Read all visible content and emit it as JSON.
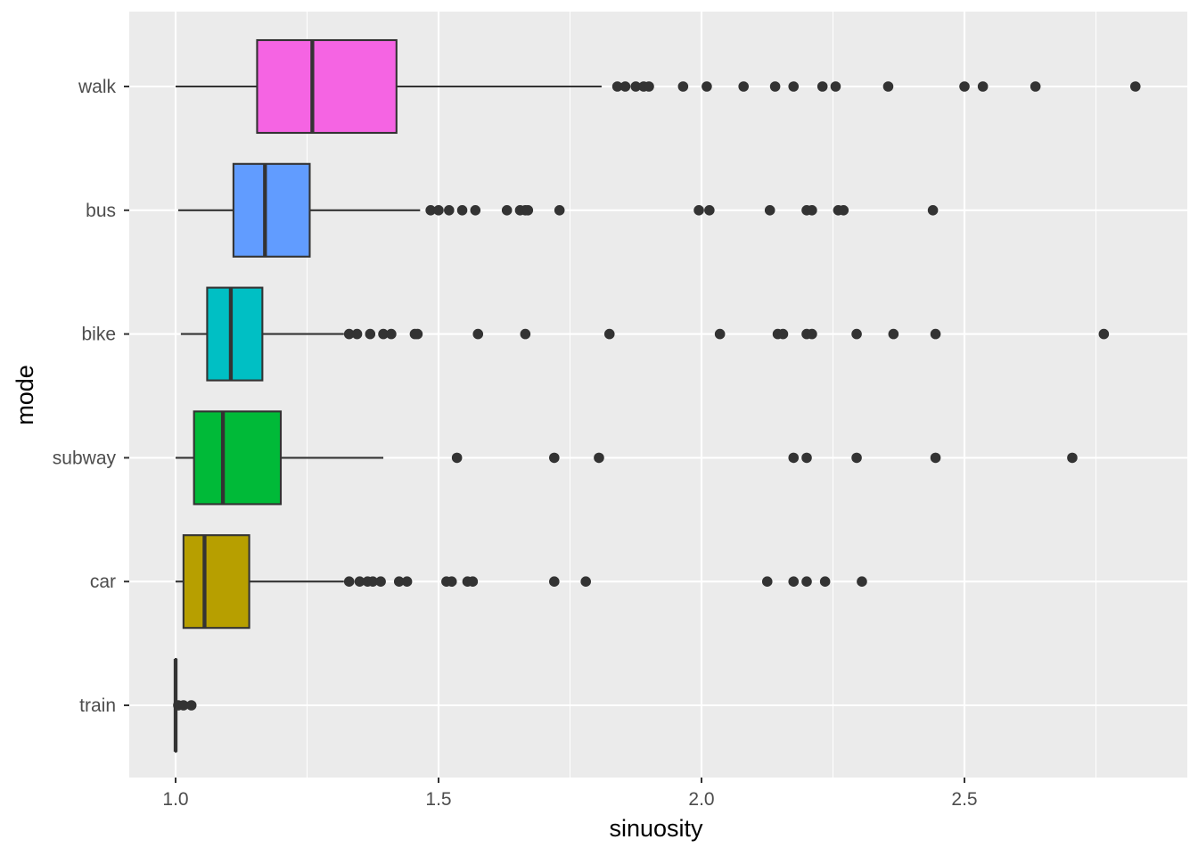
{
  "chart_data": {
    "type": "boxplot",
    "orientation": "horizontal",
    "xlabel": "sinuosity",
    "ylabel": "mode",
    "xlim": [
      0.91,
      2.87
    ],
    "x_ticks": [
      {
        "value": 1.0,
        "label": "1.0"
      },
      {
        "value": 1.5,
        "label": "1.5"
      },
      {
        "value": 2.0,
        "label": "2.0"
      },
      {
        "value": 2.5,
        "label": "2.5"
      }
    ],
    "grid": true,
    "panel_background": "#EBEBEB",
    "categories": [
      "walk",
      "bus",
      "bike",
      "subway",
      "car",
      "train"
    ],
    "series": [
      {
        "category": "walk",
        "color": "#F564E3",
        "whisker_low": 1.0,
        "q1": 1.155,
        "median": 1.26,
        "q3": 1.42,
        "whisker_high": 1.81,
        "outliers": [
          1.84,
          1.855,
          1.875,
          1.89,
          1.9,
          1.965,
          2.01,
          2.08,
          2.14,
          2.175,
          2.23,
          2.255,
          2.355,
          2.5,
          2.535,
          2.635,
          2.825
        ]
      },
      {
        "category": "bus",
        "color": "#619CFF",
        "whisker_low": 1.005,
        "q1": 1.11,
        "median": 1.17,
        "q3": 1.255,
        "whisker_high": 1.465,
        "outliers": [
          1.485,
          1.5,
          1.52,
          1.545,
          1.57,
          1.63,
          1.655,
          1.665,
          1.67,
          1.73,
          1.995,
          2.015,
          2.13,
          2.2,
          2.21,
          2.26,
          2.27,
          2.44
        ]
      },
      {
        "category": "bike",
        "color": "#00BFC4",
        "whisker_low": 1.01,
        "q1": 1.06,
        "median": 1.105,
        "q3": 1.165,
        "whisker_high": 1.32,
        "outliers": [
          1.33,
          1.345,
          1.37,
          1.395,
          1.41,
          1.455,
          1.46,
          1.575,
          1.665,
          1.825,
          2.035,
          2.145,
          2.155,
          2.2,
          2.21,
          2.295,
          2.365,
          2.445,
          2.765
        ]
      },
      {
        "category": "subway",
        "color": "#00BA38",
        "whisker_low": 1.0,
        "q1": 1.035,
        "median": 1.09,
        "q3": 1.2,
        "whisker_high": 1.395,
        "outliers": [
          1.535,
          1.72,
          1.805,
          2.175,
          2.2,
          2.295,
          2.445,
          2.705
        ]
      },
      {
        "category": "car",
        "color": "#B79F00",
        "whisker_low": 1.0,
        "q1": 1.015,
        "median": 1.055,
        "q3": 1.14,
        "whisker_high": 1.32,
        "outliers": [
          1.33,
          1.35,
          1.365,
          1.375,
          1.39,
          1.425,
          1.44,
          1.515,
          1.525,
          1.555,
          1.565,
          1.72,
          1.78,
          2.125,
          2.175,
          2.2,
          2.235,
          2.305
        ]
      },
      {
        "category": "train",
        "color": "#F8766D",
        "whisker_low": 1.0,
        "q1": 1.0,
        "median": 1.0,
        "q3": 1.0,
        "whisker_high": 1.0,
        "outliers": [
          1.005,
          1.015,
          1.03
        ]
      }
    ]
  }
}
